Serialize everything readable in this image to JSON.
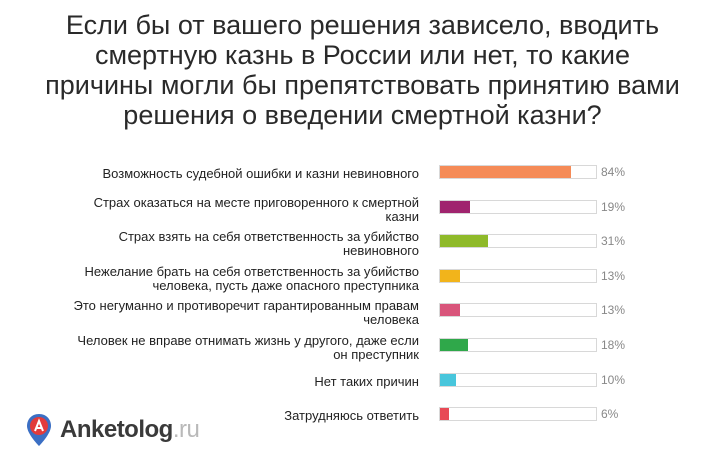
{
  "title_lines": [
    "Если бы от вашего решения зависело, вводить",
    "смертную казнь в России или нет, то какие",
    "причины могли бы препятствовать принятию вами",
    "решения о введении смертной казни?"
  ],
  "logo": {
    "name": "Anketolog",
    "tld": ".ru"
  },
  "chart_data": {
    "type": "bar",
    "orientation": "horizontal",
    "max": 100,
    "unit": "%",
    "categories": [
      [
        "Возможность судебной ошибки и казни невиновного"
      ],
      [
        "Страх оказаться на месте приговоренного к смертной",
        "казни"
      ],
      [
        "Страх взять на себя ответственность за убийство",
        "невиновного"
      ],
      [
        "Нежелание брать на себя ответственность за убийство",
        "человека, пусть даже опасного преступника"
      ],
      [
        "Это негуманно и противоречит гарантированным правам",
        "человека"
      ],
      [
        "Человек не вправе отнимать жизнь у другого, даже если",
        "он преступник"
      ],
      [
        "Нет таких причин"
      ],
      [
        "Затрудняюсь ответить"
      ]
    ],
    "values": [
      84,
      19,
      31,
      13,
      13,
      18,
      10,
      6
    ],
    "value_labels": [
      "84%",
      "19%",
      "31%",
      "13%",
      "13%",
      "18%",
      "10%",
      "6%"
    ],
    "colors": [
      "#f58b57",
      "#a0246e",
      "#8fba2a",
      "#f2b41b",
      "#d9557b",
      "#2fa84a",
      "#48c6dc",
      "#e84a55"
    ]
  }
}
